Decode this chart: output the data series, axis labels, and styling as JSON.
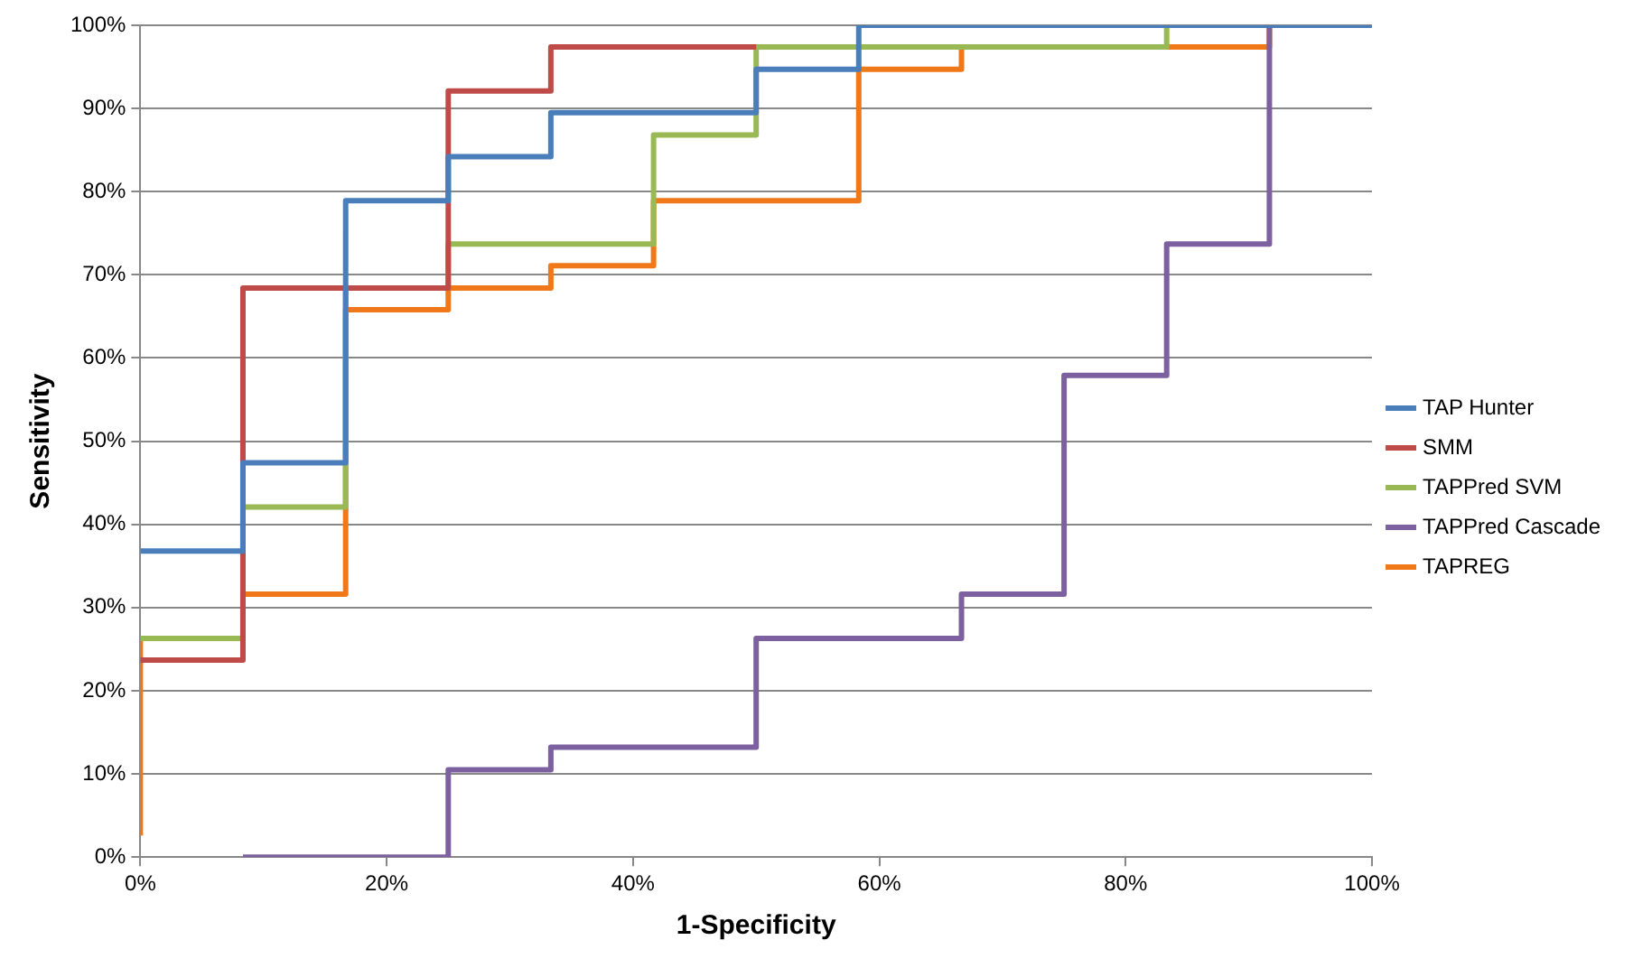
{
  "chart_data": {
    "type": "step",
    "xlabel": "1-Specificity",
    "ylabel": "Sensitivity",
    "xlim": [
      0,
      100
    ],
    "ylim": [
      0,
      100
    ],
    "xticks": [
      {
        "value": 0,
        "label": "0%"
      },
      {
        "value": 20,
        "label": "20%"
      },
      {
        "value": 40,
        "label": "40%"
      },
      {
        "value": 60,
        "label": "60%"
      },
      {
        "value": 80,
        "label": "80%"
      },
      {
        "value": 100,
        "label": "100%"
      }
    ],
    "yticks": [
      {
        "value": 0,
        "label": "0%"
      },
      {
        "value": 10,
        "label": "10%"
      },
      {
        "value": 20,
        "label": "20%"
      },
      {
        "value": 30,
        "label": "30%"
      },
      {
        "value": 40,
        "label": "40%"
      },
      {
        "value": 50,
        "label": "50%"
      },
      {
        "value": 60,
        "label": "60%"
      },
      {
        "value": 70,
        "label": "70%"
      },
      {
        "value": 80,
        "label": "80%"
      },
      {
        "value": 90,
        "label": "90%"
      },
      {
        "value": 100,
        "label": "100%"
      }
    ],
    "grid": "y",
    "legend": "right",
    "marker": "none",
    "line_style": "solid",
    "series": [
      {
        "name": "TAP Hunter",
        "color": "#4a7ebb",
        "x": [
          0,
          8.33,
          16.67,
          25,
          33.33,
          50,
          58.33,
          100
        ],
        "values": [
          36.8,
          47.4,
          78.9,
          84.2,
          89.5,
          94.7,
          100,
          100
        ]
      },
      {
        "name": "SMM",
        "color": "#be4b48",
        "x": [
          0,
          8.33,
          25,
          33.33,
          50
        ],
        "values": [
          23.7,
          68.4,
          92.1,
          97.4,
          97.4
        ]
      },
      {
        "name": "TAPPred SVM",
        "color": "#98b954",
        "x": [
          0,
          8.33,
          16.67,
          25,
          41.67,
          50,
          83.33,
          91.67
        ],
        "values": [
          26.3,
          42.1,
          68.4,
          73.7,
          86.8,
          97.4,
          100,
          100
        ]
      },
      {
        "name": "TAPPred Cascade",
        "color": "#7d60a0",
        "x": [
          8.33,
          25,
          33.33,
          50,
          66.67,
          75,
          83.33,
          91.67
        ],
        "values": [
          0,
          10.5,
          13.2,
          26.3,
          31.6,
          57.9,
          73.7,
          100
        ]
      },
      {
        "name": "TAPREG",
        "color": "#f07818",
        "x": [
          0,
          0,
          8.33,
          16.67,
          25,
          33.33,
          41.67,
          58.33,
          66.67,
          91.67,
          100
        ],
        "values": [
          2.6,
          26.3,
          31.6,
          65.8,
          68.4,
          71.1,
          78.9,
          94.7,
          97.4,
          100,
          100
        ]
      }
    ]
  }
}
